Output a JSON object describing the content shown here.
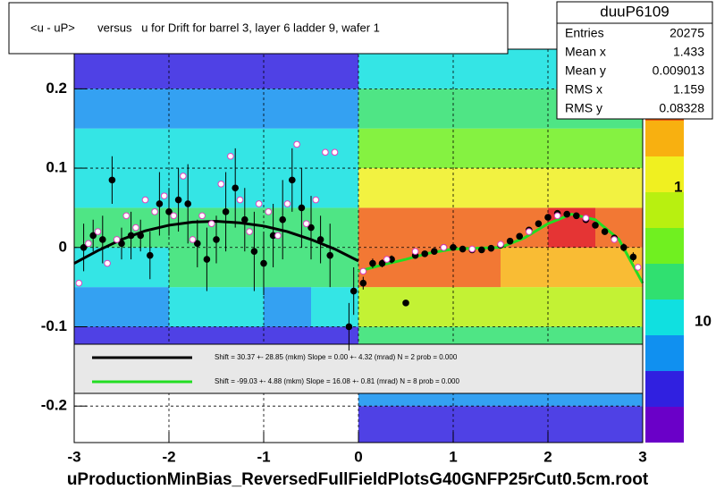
{
  "chart_data": {
    "type": "scatter",
    "title": "<u - uP>       versus   u for Drift for barrel 3, layer 6 ladder 9, wafer 1",
    "footer": "uProductionMinBias_ReversedFullFieldPlotsG40GNFP25rCut0.5cm.root",
    "xlim": [
      -3,
      3
    ],
    "ylim": [
      -0.246,
      0.25
    ],
    "xticks": [
      -3,
      -2,
      -1,
      0,
      1,
      2,
      3
    ],
    "yticks": [
      -0.2,
      -0.1,
      0,
      0.1,
      0.2
    ],
    "grid": true,
    "heatmap": {
      "x_bins": [
        -3,
        -2.5,
        -2,
        -1.5,
        -1,
        -0.5,
        0,
        0.5,
        1,
        1.5,
        2,
        2.5,
        3
      ],
      "y_bins": [
        -0.25,
        -0.2,
        -0.15,
        -0.1,
        -0.05,
        0,
        0.05,
        0.1,
        0.15,
        0.2,
        0.25
      ],
      "values": [
        [
          0,
          0,
          0,
          0,
          0,
          0,
          0.4,
          0.4,
          0.4,
          0.4,
          0.4,
          0.4
        ],
        [
          0,
          0,
          0,
          0,
          0,
          0,
          0.5,
          0.5,
          0.5,
          0.5,
          0.5,
          0.5
        ],
        [
          0.3,
          0.3,
          0.3,
          0.3,
          0.3,
          0.3,
          1,
          1,
          1,
          1,
          1,
          1
        ],
        [
          0.5,
          0.5,
          0.6,
          0.6,
          0.5,
          0.6,
          2,
          2,
          2,
          2,
          2,
          2
        ],
        [
          0.8,
          0.8,
          0.9,
          0.9,
          0.9,
          1,
          5,
          5,
          5,
          4,
          4,
          4
        ],
        [
          0.9,
          0.9,
          1,
          1,
          1,
          1,
          6,
          6,
          6,
          6,
          7,
          6
        ],
        [
          0.7,
          0.7,
          0.8,
          0.8,
          0.8,
          0.8,
          3,
          3,
          3,
          3,
          3,
          3
        ],
        [
          0.6,
          0.6,
          0.6,
          0.6,
          0.6,
          0.6,
          1.5,
          1.5,
          1.5,
          1.5,
          1.5,
          1.5
        ],
        [
          0.5,
          0.5,
          0.5,
          0.5,
          0.5,
          0.5,
          1,
          1,
          1,
          1,
          1,
          1
        ],
        [
          0.4,
          0.4,
          0.4,
          0.4,
          0.4,
          0.4,
          0.8,
          0.8,
          0.8,
          0.8,
          0.8,
          0.8
        ]
      ]
    },
    "colorbar": {
      "labels": [
        "1",
        "10"
      ]
    },
    "points": [
      {
        "color": "#000000",
        "marker": "filled",
        "x": [
          -2.9,
          -2.8,
          -2.7,
          -2.6,
          -2.5,
          -2.4,
          -2.3,
          -2.2,
          -2.1,
          -2.0,
          -1.9,
          -1.8,
          -1.7,
          -1.6,
          -1.5,
          -1.4,
          -1.3,
          -1.2,
          -1.1,
          -1.0,
          -0.9,
          -0.8,
          -0.7,
          -0.6,
          -0.5,
          -0.4,
          -0.3,
          -0.1,
          -0.05,
          0.05,
          0.15,
          0.25,
          0.35,
          0.5,
          0.6,
          0.7,
          0.8,
          0.9,
          1.0,
          1.1,
          1.2,
          1.3,
          1.4,
          1.5,
          1.6,
          1.7,
          1.8,
          1.9,
          2.0,
          2.1,
          2.2,
          2.3,
          2.4,
          2.5,
          2.6,
          2.7,
          2.8,
          2.9
        ],
        "values": [
          0.0,
          0.015,
          0.01,
          0.085,
          0.005,
          0.015,
          0.015,
          -0.01,
          0.055,
          0.045,
          0.06,
          0.055,
          0.005,
          -0.015,
          0.01,
          0.045,
          0.075,
          0.035,
          -0.005,
          -0.02,
          0.015,
          0.035,
          0.085,
          0.05,
          0.025,
          0.01,
          -0.01,
          -0.1,
          -0.055,
          -0.045,
          -0.02,
          -0.02,
          -0.015,
          -0.07,
          -0.01,
          -0.008,
          -0.005,
          0.0,
          0.0,
          -0.002,
          -0.003,
          -0.003,
          -0.001,
          0.003,
          0.008,
          0.014,
          0.022,
          0.03,
          0.038,
          0.043,
          0.042,
          0.04,
          0.035,
          0.028,
          0.02,
          0.012,
          0.0,
          -0.012
        ],
        "errors": [
          0.03,
          0.02,
          0.03,
          0.03,
          0.02,
          0.03,
          0.02,
          0.03,
          0.04,
          0.03,
          0.04,
          0.05,
          0.03,
          0.04,
          0.03,
          0.05,
          0.05,
          0.04,
          0.05,
          0.04,
          0.04,
          0.05,
          0.04,
          0.05,
          0.04,
          0.03,
          0.04,
          0.03,
          0.03,
          0.008,
          0.006,
          0.005,
          0.005,
          0.004,
          0.004,
          0.003,
          0.003,
          0.003,
          0.003,
          0.003,
          0.003,
          0.003,
          0.003,
          0.003,
          0.003,
          0.003,
          0.003,
          0.003,
          0.003,
          0.003,
          0.003,
          0.003,
          0.003,
          0.003,
          0.003,
          0.004,
          0.005,
          0.006
        ]
      },
      {
        "color": "#e040c0",
        "marker": "open",
        "x": [
          -2.95,
          -2.85,
          -2.75,
          -2.65,
          -2.55,
          -2.45,
          -2.35,
          -2.25,
          -2.15,
          -2.05,
          -1.95,
          -1.85,
          -1.75,
          -1.65,
          -1.55,
          -1.45,
          -1.35,
          -1.25,
          -1.15,
          -1.05,
          -0.95,
          -0.85,
          -0.75,
          -0.65,
          -0.55,
          -0.45,
          -0.35,
          -0.25,
          0.05,
          0.3,
          0.6,
          0.9,
          1.2,
          1.5,
          1.8,
          2.1,
          2.4,
          2.7,
          2.95
        ],
        "values": [
          -0.045,
          0.005,
          0.02,
          -0.02,
          0.01,
          0.04,
          0.025,
          0.06,
          0.045,
          0.065,
          0.04,
          0.09,
          0.01,
          0.04,
          0.03,
          0.08,
          0.115,
          0.06,
          0.02,
          0.055,
          0.045,
          0.015,
          0.055,
          0.13,
          0.03,
          0.06,
          0.12,
          0.12,
          -0.03,
          -0.015,
          -0.005,
          0.0,
          -0.002,
          0.004,
          0.02,
          0.04,
          0.037,
          0.01,
          -0.025
        ]
      }
    ],
    "series": [
      {
        "name": "Shift =    30.37 +- 28.85 (mkm) Slope =     0.00 +- 4.32 (mrad)  N = 2 prob = 0.000",
        "color": "#000000",
        "x": [
          -3,
          -2.75,
          -2.5,
          -2.25,
          -2,
          -1.75,
          -1.5,
          -1.25,
          -1,
          -0.75,
          -0.5,
          -0.25,
          0
        ],
        "values": [
          -0.02,
          -0.004,
          0.01,
          0.021,
          0.028,
          0.032,
          0.033,
          0.031,
          0.027,
          0.02,
          0.01,
          -0.002,
          -0.017
        ]
      },
      {
        "name": "Shift =   -99.03 +- 4.88 (mkm) Slope =    16.08 +- 0.81 (mrad)  N = 8 prob = 0.000",
        "color": "#22dd22",
        "x": [
          0,
          0.25,
          0.5,
          0.75,
          1,
          1.25,
          1.5,
          1.75,
          2,
          2.25,
          2.5,
          2.75,
          3
        ],
        "values": [
          -0.03,
          -0.022,
          -0.015,
          -0.007,
          -0.002,
          -0.001,
          0.0,
          0.012,
          0.03,
          0.042,
          0.035,
          0.01,
          -0.045
        ]
      }
    ],
    "stats": {
      "title": "duuP6109",
      "rows": [
        [
          "Entries",
          "20275"
        ],
        [
          "Mean x",
          "1.433"
        ],
        [
          "Mean y",
          "0.009013"
        ],
        [
          "RMS x",
          "1.159"
        ],
        [
          "RMS y",
          "0.08328"
        ]
      ]
    }
  }
}
